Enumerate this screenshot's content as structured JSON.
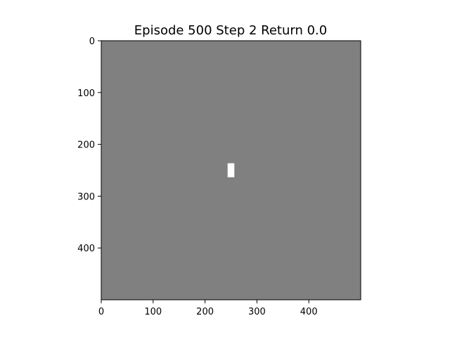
{
  "figure": {
    "title": "Episode 500 Step 2 Return 0.0"
  },
  "frame": {
    "background_color": "#808080",
    "object_color": "#ffffff",
    "x_range": [
      0,
      500
    ],
    "y_range": [
      0,
      500
    ],
    "y_inverted": true,
    "x_ticks": [
      0,
      100,
      200,
      300,
      400
    ],
    "y_ticks": [
      0,
      100,
      200,
      300,
      400
    ],
    "objects": [
      {
        "name": "player-block",
        "x": 250,
        "y": 250,
        "w": 13,
        "h": 27
      }
    ]
  }
}
